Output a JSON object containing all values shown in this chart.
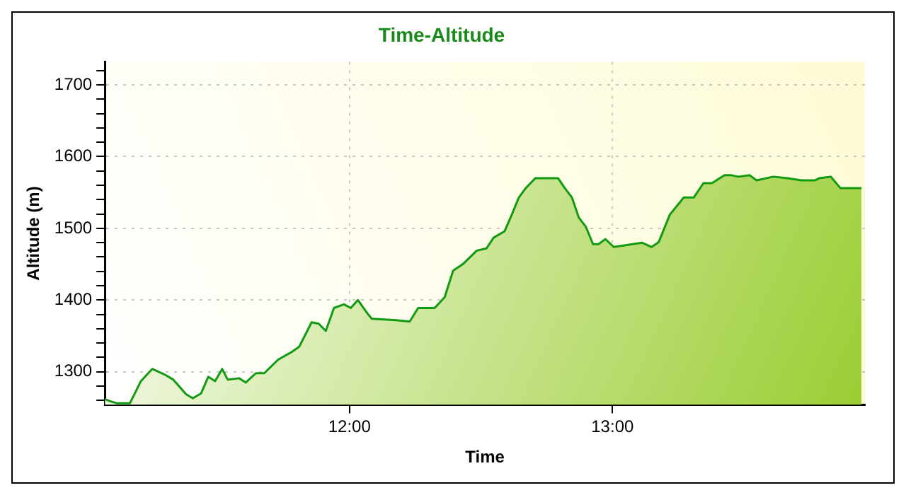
{
  "chart_data": {
    "type": "area",
    "title": "Time-Altitude",
    "xlabel": "Time",
    "ylabel": "Altitude (m)",
    "xlim": [
      11.07,
      13.96
    ],
    "xticks": [
      {
        "value": 12,
        "label": "12:00"
      },
      {
        "value": 13,
        "label": "13:00"
      }
    ],
    "ylim": [
      1254,
      1732
    ],
    "yticks": [
      {
        "value": 1260,
        "label": null
      },
      {
        "value": 1280,
        "label": null
      },
      1300,
      {
        "value": 1320,
        "label": null
      },
      {
        "value": 1340,
        "label": null
      },
      {
        "value": 1360,
        "label": null
      },
      {
        "value": 1380,
        "label": null
      },
      1400,
      {
        "value": 1420,
        "label": null
      },
      {
        "value": 1440,
        "label": null
      },
      {
        "value": 1460,
        "label": null
      },
      {
        "value": 1480,
        "label": null
      },
      1500,
      {
        "value": 1520,
        "label": null
      },
      {
        "value": 1540,
        "label": null
      },
      {
        "value": 1560,
        "label": null
      },
      {
        "value": 1580,
        "label": null
      },
      1600,
      {
        "value": 1620,
        "label": null
      },
      {
        "value": 1640,
        "label": null
      },
      {
        "value": 1660,
        "label": null
      },
      {
        "value": 1680,
        "label": null
      },
      1700,
      {
        "value": 1720,
        "label": null
      }
    ],
    "grid": true,
    "legend": false,
    "marker": "none",
    "line_style": "solid",
    "series": [
      {
        "color": "#139a13",
        "x": [
          11.07,
          11.09,
          11.117,
          11.165,
          11.207,
          11.25,
          11.298,
          11.33,
          11.378,
          11.404,
          11.436,
          11.463,
          11.489,
          11.516,
          11.537,
          11.58,
          11.606,
          11.644,
          11.676,
          11.729,
          11.782,
          11.809,
          11.856,
          11.883,
          11.91,
          11.941,
          11.979,
          12.005,
          12.032,
          12.069,
          12.085,
          12.176,
          12.229,
          12.261,
          12.324,
          12.362,
          12.394,
          12.431,
          12.484,
          12.521,
          12.548,
          12.59,
          12.617,
          12.644,
          12.67,
          12.707,
          12.739,
          12.793,
          12.819,
          12.846,
          12.872,
          12.899,
          12.926,
          12.947,
          12.973,
          13.005,
          13.112,
          13.149,
          13.176,
          13.218,
          13.271,
          13.309,
          13.346,
          13.378,
          13.426,
          13.452,
          13.479,
          13.521,
          13.548,
          13.612,
          13.665,
          13.718,
          13.771,
          13.787,
          13.83,
          13.867,
          13.947
        ],
        "values": [
          1262,
          1259,
          1256,
          1256,
          1287,
          1304,
          1296,
          1289,
          1269,
          1263,
          1270,
          1293,
          1287,
          1304,
          1289,
          1291,
          1285,
          1298,
          1298,
          1317,
          1328,
          1335,
          1369,
          1367,
          1357,
          1389,
          1394,
          1389,
          1400,
          1381,
          1374,
          1372,
          1370,
          1389,
          1389,
          1404,
          1441,
          1450,
          1469,
          1472,
          1487,
          1496,
          1519,
          1543,
          1556,
          1570,
          1570,
          1570,
          1556,
          1543,
          1515,
          1502,
          1478,
          1478,
          1485,
          1474,
          1480,
          1474,
          1481,
          1519,
          1543,
          1543,
          1563,
          1563,
          1574,
          1574,
          1572,
          1574,
          1567,
          1572,
          1570,
          1567,
          1567,
          1570,
          1572,
          1556,
          1556
        ]
      }
    ]
  }
}
